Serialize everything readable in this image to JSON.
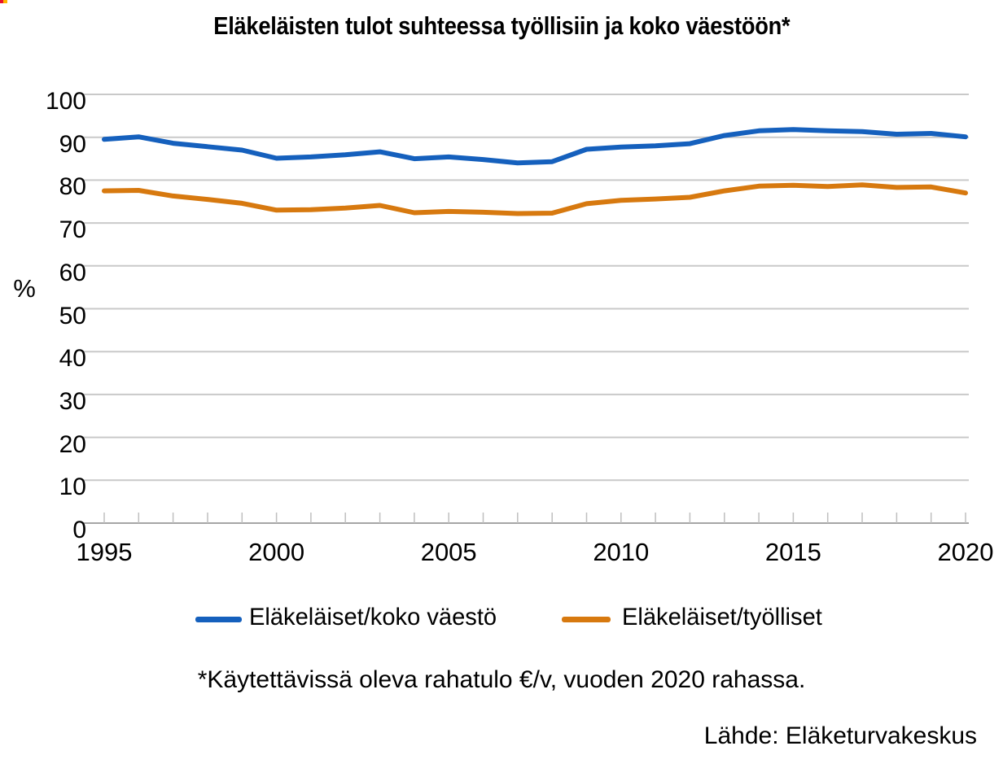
{
  "page": {
    "title": "Eläkeläisten tulot suhteessa työllisiin ja koko väestöön*",
    "footnote": "*Käytettävissä oleva rahatulo €/v, vuoden 2020 rahassa.",
    "source": "Lähde: Eläketurvakeskus"
  },
  "chart_data": {
    "type": "line",
    "title": "Eläkeläisten tulot suhteessa työllisiin ja koko väestöön*",
    "xlabel": "",
    "ylabel": "%",
    "ylim": [
      0,
      100
    ],
    "ytick_step": 10,
    "grid": true,
    "legend_position": "bottom",
    "x": [
      1995,
      1996,
      1997,
      1998,
      1999,
      2000,
      2001,
      2002,
      2003,
      2004,
      2005,
      2006,
      2007,
      2008,
      2009,
      2010,
      2011,
      2012,
      2013,
      2014,
      2015,
      2016,
      2017,
      2018,
      2019,
      2020
    ],
    "xtick_labels": [
      "1995",
      "2000",
      "2005",
      "2010",
      "2015",
      "2020"
    ],
    "series": [
      {
        "name": "Eläkeläiset/koko väestö",
        "color": "#1560BD",
        "values": [
          89.5,
          90.1,
          88.6,
          87.8,
          87.0,
          85.1,
          85.4,
          85.9,
          86.6,
          85.0,
          85.4,
          84.8,
          84.0,
          84.3,
          87.2,
          87.7,
          88.0,
          88.5,
          90.4,
          91.5,
          91.8,
          91.5,
          91.3,
          90.7,
          90.9,
          90.1
        ]
      },
      {
        "name": "Eläkeläiset/työlliset",
        "color": "#D7790F",
        "values": [
          77.5,
          77.6,
          76.3,
          75.5,
          74.6,
          73.0,
          73.1,
          73.5,
          74.1,
          72.4,
          72.7,
          72.5,
          72.2,
          72.3,
          74.5,
          75.3,
          75.6,
          76.0,
          77.5,
          78.6,
          78.8,
          78.5,
          78.9,
          78.3,
          78.4,
          77.0
        ]
      }
    ],
    "colors": {
      "gridline": "#c9c9c9",
      "axis_line": "#a6a6a6",
      "tick": "#bfbfbf",
      "text": "#000000"
    }
  }
}
